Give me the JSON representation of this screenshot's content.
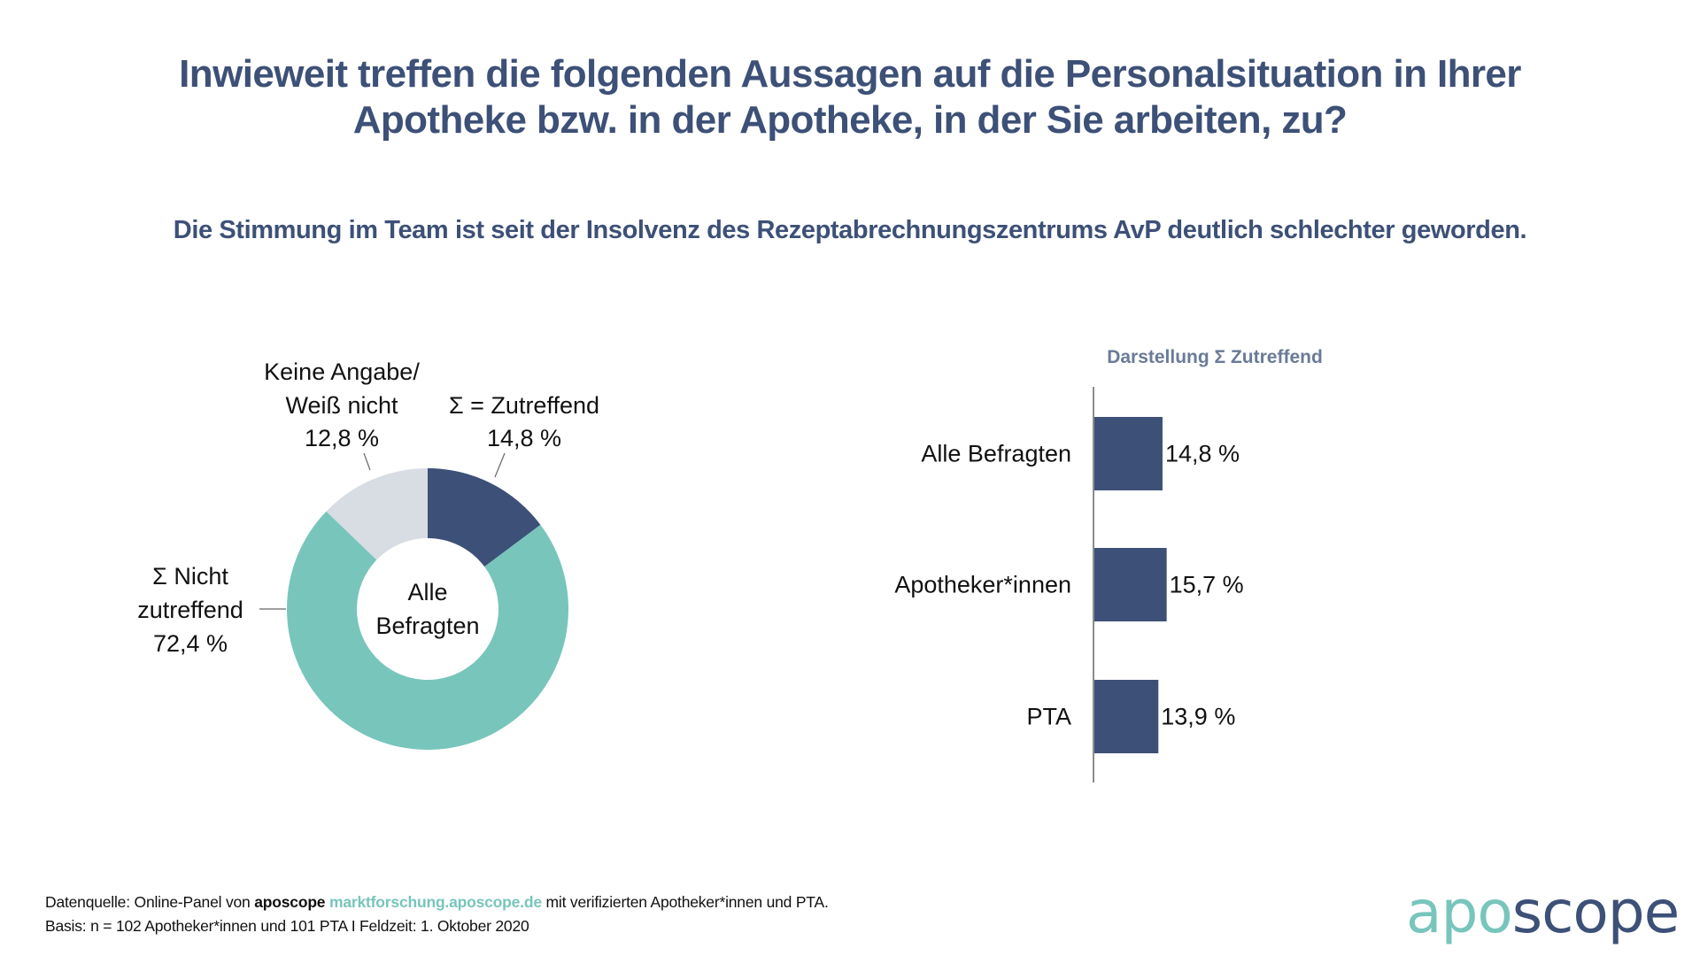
{
  "header": {
    "title_line1": "Inwieweit treffen die folgenden Aussagen auf die Personalsituation in Ihrer",
    "title_line2": "Apotheke bzw. in der Apotheke, in der Sie arbeiten, zu?",
    "subtitle": "Die Stimmung im Team ist seit der Insolvenz des Rezeptabrechnungszentrums AvP deutlich schlechter geworden."
  },
  "colors": {
    "navy": "#3d5077",
    "teal": "#78c5bc",
    "light_gray": "#d8dce3",
    "bar_title": "#6a7a98"
  },
  "chart_data": [
    {
      "type": "pie",
      "variant": "donut",
      "center_label": [
        "Alle",
        "Befragten"
      ],
      "slices": [
        {
          "name": "Σ = Zutreffend",
          "label_lines": [
            "Σ = Zutreffend",
            "14,8 %"
          ],
          "value": 14.8,
          "color": "#3d5077"
        },
        {
          "name": "Σ Nicht zutreffend",
          "label_lines": [
            "Σ Nicht",
            "zutreffend",
            "72,4 %"
          ],
          "value": 72.4,
          "color": "#78c5bc"
        },
        {
          "name": "Keine Angabe/ Weiß nicht",
          "label_lines": [
            "Keine Angabe/",
            "Weiß nicht",
            "12,8 %"
          ],
          "value": 12.8,
          "color": "#d8dce3"
        }
      ],
      "start": "top",
      "direction": "clockwise"
    },
    {
      "type": "bar",
      "orientation": "horizontal",
      "title": "Darstellung Σ Zutreffend",
      "categories": [
        "Alle Befragten",
        "Apotheker*innen",
        "PTA"
      ],
      "values": [
        14.8,
        15.7,
        13.9
      ],
      "value_labels": [
        "14,8 %",
        "15,7 %",
        "13,9 %"
      ],
      "unit": "%",
      "color": "#3d5077",
      "grid": false
    }
  ],
  "footer": {
    "line1_prefix": "Datenquelle: Online-Panel von ",
    "line1_brand": "aposcope",
    "line1_link": "marktforschung.aposcope.de",
    "line1_suffix": " mit verifizierten Apotheker*innen und PTA.",
    "line2": "Basis: n = 102 Apotheker*innen und 101 PTA I Feldzeit: 1. Oktober 2020"
  },
  "logo": {
    "part1": "apo",
    "part2": "scope"
  }
}
